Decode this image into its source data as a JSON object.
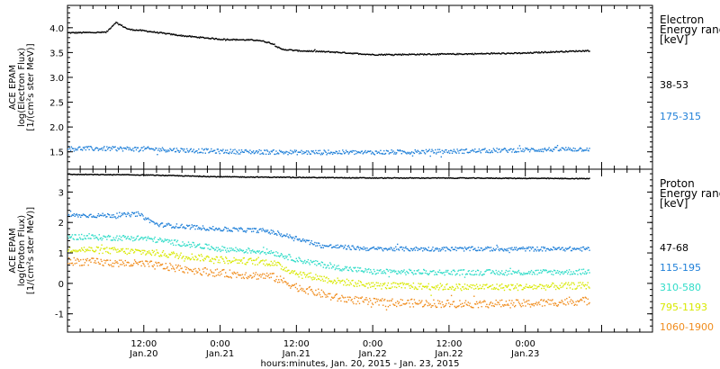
{
  "chart_data": [
    {
      "type": "scatter",
      "panel": "electron",
      "ylabel_lines": [
        "ACE EPAM",
        "log(Electron Flux)",
        "[1/(cm²s ster MeV)]"
      ],
      "ylim": [
        1.15,
        4.45
      ],
      "yticks": [
        1.5,
        2.0,
        2.5,
        3.0,
        3.5,
        4.0
      ],
      "ytick_labels": [
        "1.5",
        "2.0",
        "2.5",
        "3.0",
        "3.5",
        "4.0"
      ],
      "legend_title_lines": [
        "Electron",
        "Energy range",
        "[keV]"
      ],
      "grid": false,
      "legend_placement": "right",
      "series": [
        {
          "name": "38-53",
          "color": "#000000",
          "x": [
            "2015-01-20T00:00",
            "2015-01-20T06:00",
            "2015-01-20T07:30",
            "2015-01-20T09:30",
            "2015-01-20T12:00",
            "2015-01-20T18:00",
            "2015-01-21T00:00",
            "2015-01-21T06:00",
            "2015-01-21T08:00",
            "2015-01-21T09:30",
            "2015-01-21T12:00",
            "2015-01-21T18:00",
            "2015-01-22T00:00",
            "2015-01-22T12:00",
            "2015-01-23T00:00",
            "2015-01-23T03:00",
            "2015-01-23T10:00"
          ],
          "y": [
            3.91,
            3.92,
            4.12,
            3.98,
            3.95,
            3.85,
            3.78,
            3.76,
            3.7,
            3.58,
            3.55,
            3.52,
            3.47,
            3.48,
            3.5,
            3.52,
            3.55
          ]
        },
        {
          "name": "175-315",
          "color": "#1e7fd8",
          "x": [
            "2015-01-20T00:00",
            "2015-01-20T12:00",
            "2015-01-21T00:00",
            "2015-01-21T12:00",
            "2015-01-22T00:00",
            "2015-01-22T12:00",
            "2015-01-23T00:00",
            "2015-01-23T10:00"
          ],
          "y": [
            1.58,
            1.57,
            1.52,
            1.5,
            1.5,
            1.52,
            1.55,
            1.57
          ]
        }
      ]
    },
    {
      "type": "scatter",
      "panel": "proton",
      "ylabel_lines": [
        "ACE EPAM",
        "log(Proton Flux)",
        "[1/(cm²s ster MeV)]"
      ],
      "ylim": [
        -1.6,
        3.75
      ],
      "yticks": [
        -1,
        0,
        1,
        2,
        3
      ],
      "ytick_labels": [
        "-1",
        "0",
        "1",
        "2",
        "3"
      ],
      "xlim": [
        "2015-01-20T00:00",
        "2015-01-23T20:00"
      ],
      "xticks": [
        "2015-01-20T12:00",
        "2015-01-21T00:00",
        "2015-01-21T12:00",
        "2015-01-22T00:00",
        "2015-01-22T12:00",
        "2015-01-23T00:00"
      ],
      "xtick_labels_top": [
        "12:00",
        "0:00",
        "12:00",
        "0:00",
        "12:00",
        "0:00"
      ],
      "xtick_labels_bottom": [
        "Jan.20",
        "Jan.21",
        "Jan.21",
        "Jan.22",
        "Jan.22",
        "Jan.23"
      ],
      "xlabel": "hours:minutes, Jan. 20, 2015 - Jan. 23, 2015",
      "legend_title_lines": [
        "Proton",
        "Energy range",
        "[keV]"
      ],
      "grid": false,
      "legend_placement": "right",
      "series": [
        {
          "name": "47-68",
          "color": "#000000",
          "x": [
            "2015-01-20T00:00",
            "2015-01-20T12:00",
            "2015-01-21T00:00",
            "2015-01-21T12:00",
            "2015-01-22T00:00",
            "2015-01-22T12:00",
            "2015-01-23T00:00",
            "2015-01-23T10:00"
          ],
          "y": [
            3.6,
            3.58,
            3.52,
            3.5,
            3.48,
            3.48,
            3.47,
            3.46
          ]
        },
        {
          "name": "115-195",
          "color": "#1e7fd8",
          "x": [
            "2015-01-20T00:00",
            "2015-01-20T08:00",
            "2015-01-20T11:00",
            "2015-01-20T14:00",
            "2015-01-21T00:00",
            "2015-01-21T07:00",
            "2015-01-21T12:00",
            "2015-01-21T16:00",
            "2015-01-22T00:00",
            "2015-01-22T12:00",
            "2015-01-23T00:00",
            "2015-01-23T10:00"
          ],
          "y": [
            2.25,
            2.25,
            2.3,
            1.95,
            1.8,
            1.75,
            1.5,
            1.25,
            1.15,
            1.15,
            1.15,
            1.15
          ]
        },
        {
          "name": "310-580",
          "color": "#30dcc8",
          "x": [
            "2015-01-20T00:00",
            "2015-01-20T12:00",
            "2015-01-21T00:00",
            "2015-01-21T08:00",
            "2015-01-21T12:00",
            "2015-01-21T18:00",
            "2015-01-22T00:00",
            "2015-01-22T12:00",
            "2015-01-23T00:00",
            "2015-01-23T10:00"
          ],
          "y": [
            1.55,
            1.5,
            1.15,
            1.05,
            0.8,
            0.55,
            0.4,
            0.38,
            0.38,
            0.4
          ]
        },
        {
          "name": "795-1193",
          "color": "#d8e800",
          "x": [
            "2015-01-20T00:00",
            "2015-01-20T12:00",
            "2015-01-21T00:00",
            "2015-01-21T08:00",
            "2015-01-21T12:00",
            "2015-01-21T18:00",
            "2015-01-22T00:00",
            "2015-01-22T12:00",
            "2015-01-23T00:00",
            "2015-01-23T10:00"
          ],
          "y": [
            1.15,
            1.05,
            0.8,
            0.7,
            0.35,
            0.1,
            -0.05,
            -0.1,
            -0.1,
            -0.05
          ]
        },
        {
          "name": "1060-1900",
          "color": "#f08c1c",
          "x": [
            "2015-01-20T00:00",
            "2015-01-20T12:00",
            "2015-01-21T00:00",
            "2015-01-21T08:00",
            "2015-01-21T12:00",
            "2015-01-21T18:00",
            "2015-01-22T00:00",
            "2015-01-22T12:00",
            "2015-01-23T00:00",
            "2015-01-23T10:00"
          ],
          "y": [
            0.75,
            0.65,
            0.35,
            0.25,
            -0.1,
            -0.45,
            -0.6,
            -0.65,
            -0.65,
            -0.55
          ]
        }
      ]
    }
  ]
}
